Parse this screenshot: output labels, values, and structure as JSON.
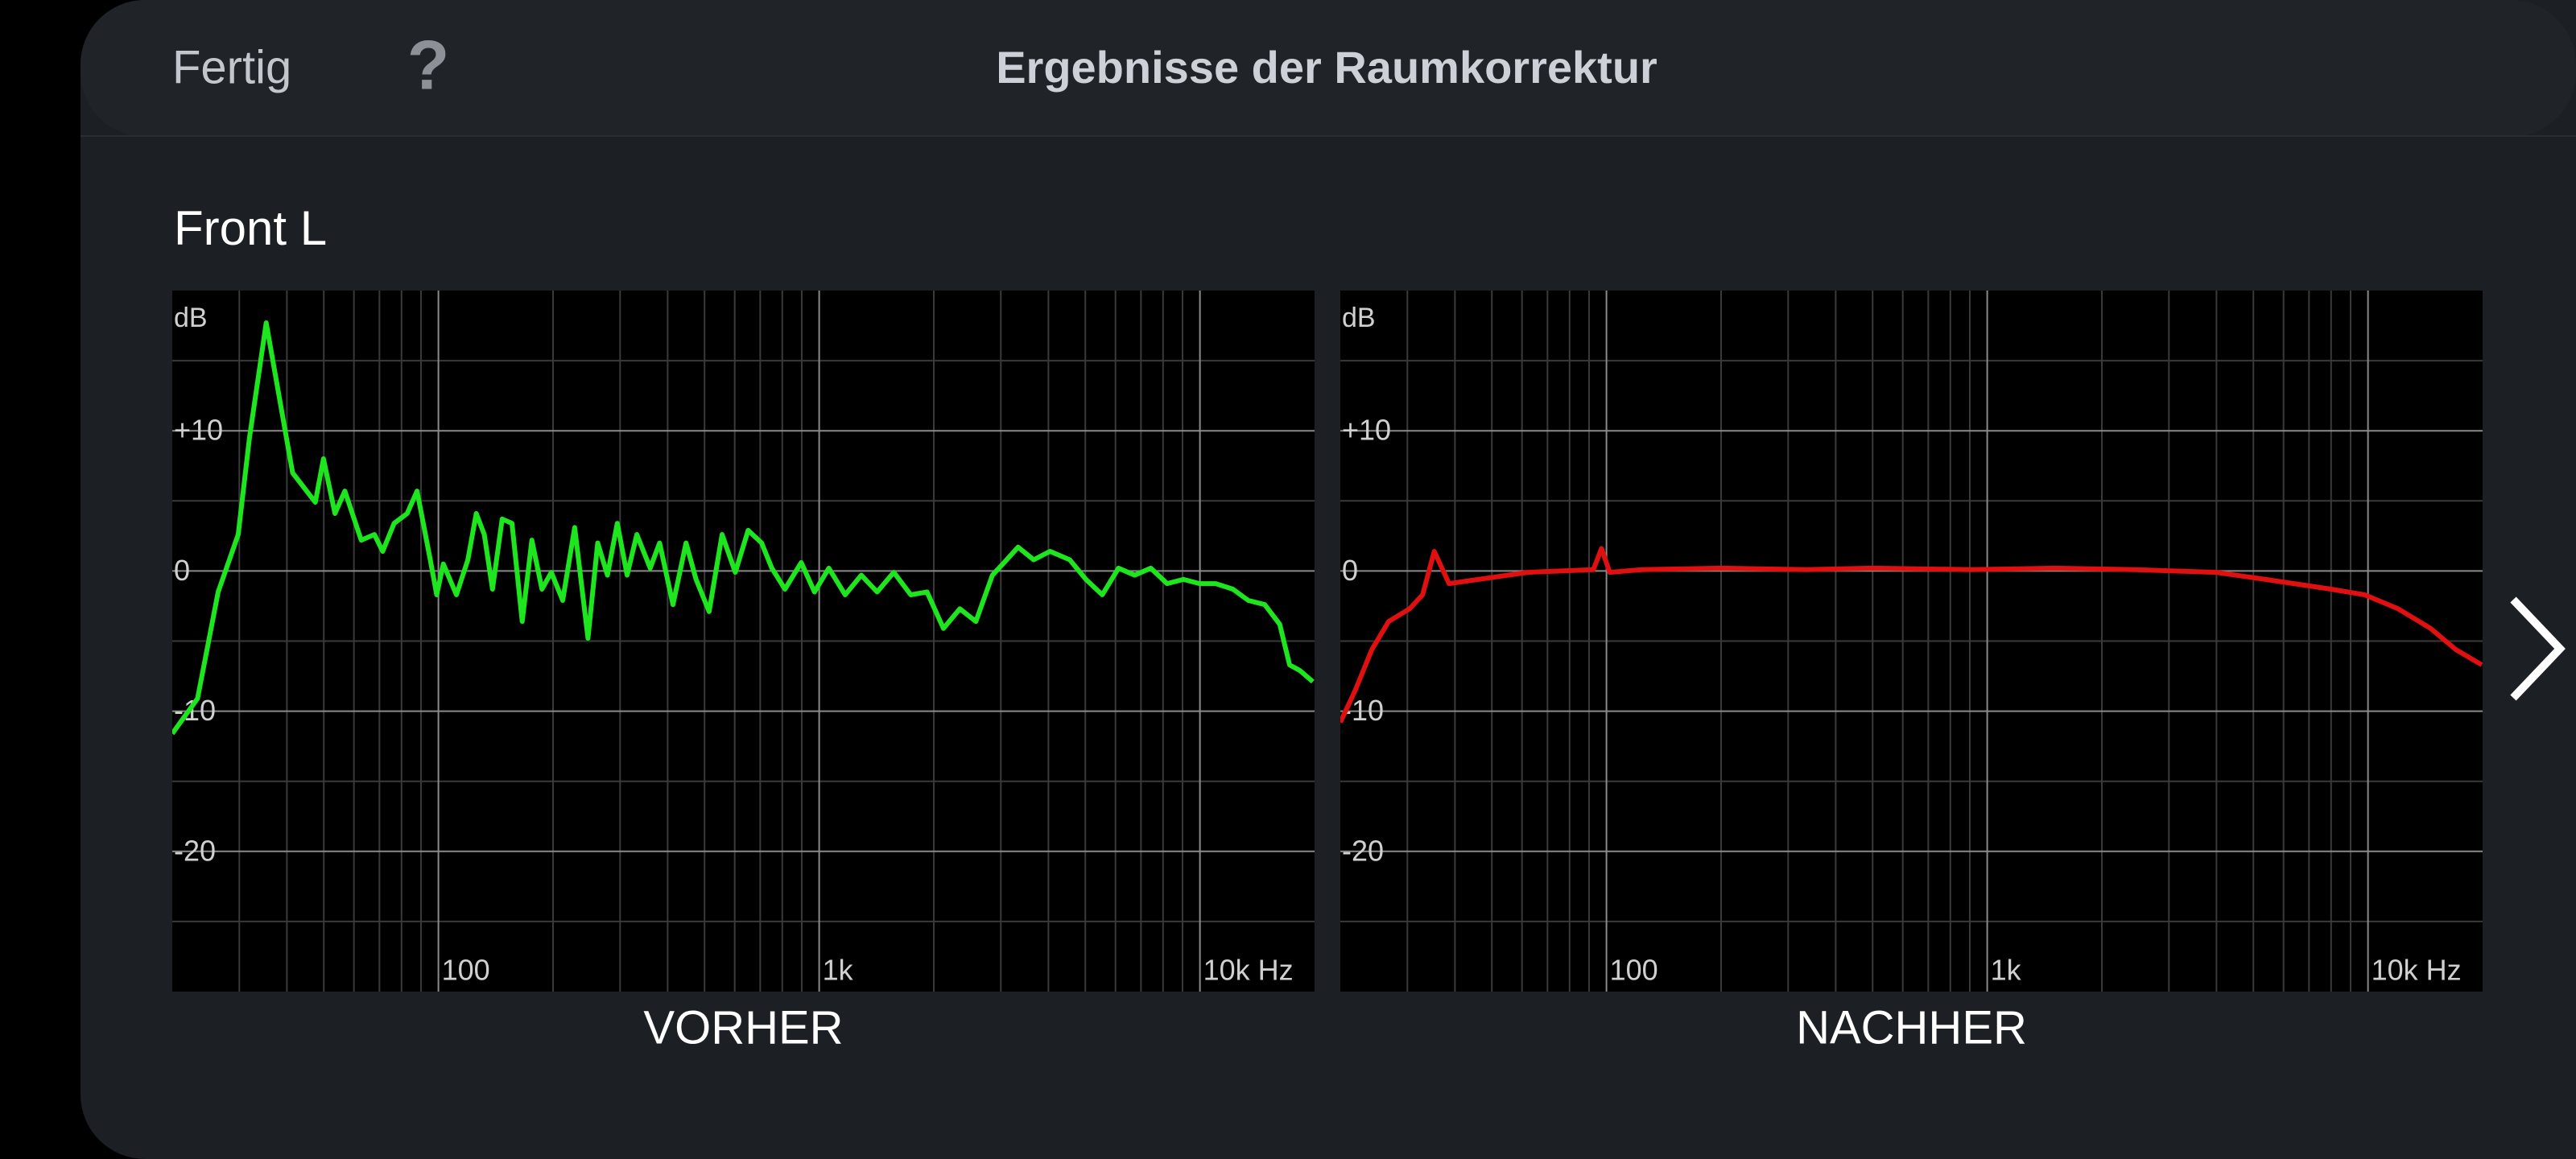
{
  "header": {
    "done": "Fertig",
    "help": "?",
    "title": "Ergebnisse der Raumkorrektur"
  },
  "channel": "Front L",
  "chart_data": [
    {
      "type": "line",
      "caption": "VORHER",
      "ylabel": "dB",
      "xscale": "log",
      "grid": true,
      "xlim": [
        20,
        20000
      ],
      "ylim": [
        -30,
        20
      ],
      "xticks": [
        100,
        {
          "value": 1000,
          "label": "1k"
        },
        {
          "value": 10000,
          "label": "10k Hz"
        }
      ],
      "xminor": [
        30,
        40,
        50,
        60,
        70,
        80,
        90,
        200,
        300,
        400,
        500,
        600,
        700,
        800,
        900,
        2000,
        3000,
        4000,
        5000,
        6000,
        7000,
        8000,
        9000
      ],
      "yticks": [
        {
          "value": 10,
          "label": "+10"
        },
        0,
        -10,
        -20
      ],
      "yminor": [
        15,
        5,
        -5,
        -15,
        -25
      ],
      "color": "#1ee61e",
      "x": [
        20,
        23.3,
        26.4,
        29.8,
        31.9,
        35.3,
        38.2,
        41.4,
        47.5,
        49.9,
        53.5,
        56.8,
        62.7,
        67.9,
        71.4,
        76.5,
        82.8,
        87.9,
        95.2,
        99,
        103,
        111.5,
        119.5,
        125.7,
        132,
        138.7,
        147,
        156,
        166,
        176,
        187,
        198,
        212,
        228,
        247,
        262,
        278,
        295,
        313,
        332,
        360,
        381,
        413,
        447,
        475,
        514,
        556,
        602,
        651,
        706,
        751,
        813,
        897,
        972,
        1060,
        1170,
        1290,
        1420,
        1570,
        1740,
        1920,
        2120,
        2340,
        2580,
        2850,
        3060,
        3330,
        3660,
        4040,
        4550,
        5020,
        5540,
        6110,
        6740,
        7430,
        8200,
        9050,
        9980,
        11000,
        12200,
        13400,
        14800,
        16200,
        17200,
        18300,
        19800
      ],
      "values": [
        -11.6,
        -9.1,
        -1.5,
        2.6,
        9.5,
        17.7,
        12.4,
        7,
        4.9,
        8,
        4.1,
        5.7,
        2.2,
        2.6,
        1.4,
        3.4,
        4.1,
        5.7,
        0.8,
        -1.7,
        0.5,
        -1.7,
        0.8,
        4.1,
        2.6,
        -1.3,
        3.7,
        3.4,
        -3.6,
        2.2,
        -1.3,
        -0.1,
        -2.1,
        3.1,
        -4.8,
        2,
        -0.3,
        3.4,
        -0.3,
        2.6,
        0.2,
        2,
        -2.4,
        2,
        -0.6,
        -2.9,
        2.6,
        -0.1,
        2.9,
        2,
        0.2,
        -1.3,
        0.6,
        -1.5,
        0.2,
        -1.7,
        -0.3,
        -1.5,
        -0.1,
        -1.7,
        -1.5,
        -4.1,
        -2.7,
        -3.6,
        -0.3,
        0.6,
        1.7,
        0.8,
        1.4,
        0.8,
        -0.6,
        -1.7,
        0.2,
        -0.3,
        0.2,
        -0.9,
        -0.6,
        -0.9,
        -0.9,
        -1.3,
        -2.1,
        -2.4,
        -3.8,
        -6.7,
        -7.1,
        -7.9
      ]
    },
    {
      "type": "line",
      "caption": "NACHHER",
      "ylabel": "dB",
      "xscale": "log",
      "grid": true,
      "xlim": [
        20,
        20000
      ],
      "ylim": [
        -30,
        20
      ],
      "xticks": [
        100,
        {
          "value": 1000,
          "label": "1k"
        },
        {
          "value": 10000,
          "label": "10k Hz"
        }
      ],
      "xminor": [
        30,
        40,
        50,
        60,
        70,
        80,
        90,
        200,
        300,
        400,
        500,
        600,
        700,
        800,
        900,
        2000,
        3000,
        4000,
        5000,
        6000,
        7000,
        8000,
        9000
      ],
      "yticks": [
        {
          "value": 10,
          "label": "+10"
        },
        0,
        -10,
        -20
      ],
      "yminor": [
        15,
        5,
        -5,
        -15,
        -25
      ],
      "color": "#e01010",
      "x": [
        20,
        21.9,
        24.2,
        26.8,
        30.4,
        32.9,
        35.3,
        38.6,
        46.1,
        62.1,
        92.4,
        97,
        102,
        124,
        200,
        336,
        500,
        906,
        1500,
        2440,
        4000,
        5380,
        8000,
        9800,
        12000,
        14600,
        17000,
        19900
      ],
      "values": [
        -10.8,
        -8.5,
        -5.6,
        -3.6,
        -2.7,
        -1.7,
        1.4,
        -0.9,
        -0.6,
        -0.1,
        0.1,
        1.6,
        -0.1,
        0.1,
        0.2,
        0.1,
        0.2,
        0.1,
        0.2,
        0.1,
        -0.1,
        -0.6,
        -1.3,
        -1.7,
        -2.7,
        -4.1,
        -5.6,
        -6.7
      ]
    }
  ]
}
